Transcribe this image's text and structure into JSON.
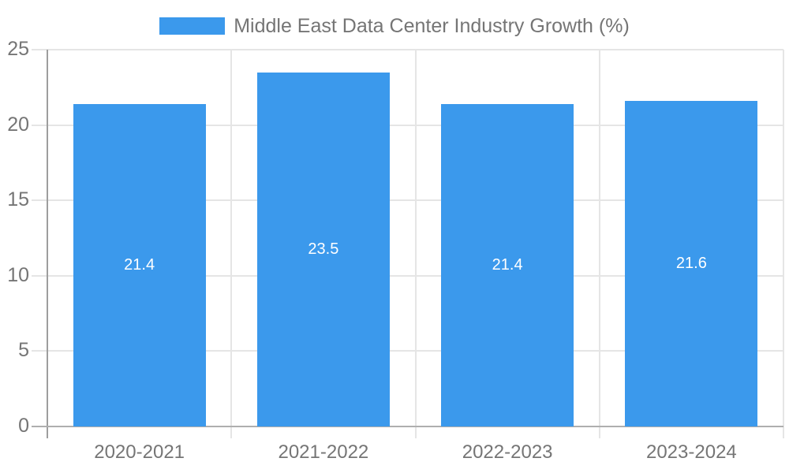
{
  "chart_data": {
    "type": "bar",
    "title": "Middle East Data Center Industry Growth (%)",
    "categories": [
      "2020-2021",
      "2021-2022",
      "2022-2023",
      "2023-2024"
    ],
    "values": [
      21.4,
      23.5,
      21.4,
      21.6
    ],
    "value_labels": [
      "21.4",
      "23.5",
      "21.4",
      "21.6"
    ],
    "xlabel": "",
    "ylabel": "",
    "ylim": [
      0,
      25
    ],
    "yticks": [
      0,
      5,
      10,
      15,
      20,
      25
    ],
    "ytick_labels": [
      "0",
      "5",
      "10",
      "15",
      "20",
      "25"
    ],
    "grid": "horizontal lines at each y tick, vertical lines at category boundaries",
    "legend_position": "top-center",
    "legend_entries": [
      "Middle East Data Center Industry Growth (%)"
    ],
    "colors": {
      "bar": "#3B99EC",
      "bar_value_text": "#FFFFFF",
      "axis_text": "#757575",
      "legend_text": "#757575",
      "grid_line": "#E5E5E5",
      "x_axis_line": "#AFAFAF",
      "y_axis_line": "#9E9E9E",
      "background": "#FFFFFF"
    }
  }
}
